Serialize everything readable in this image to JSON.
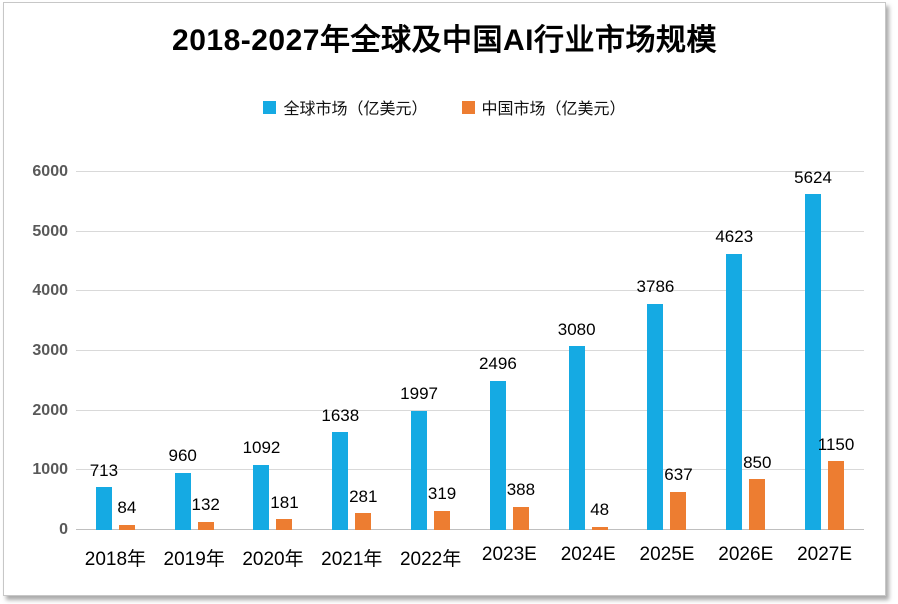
{
  "title": "2018-2027年全球及中国AI行业市场规模",
  "legend": [
    {
      "label": "全球市场（亿美元）",
      "color": "#15AAE3",
      "marker": "square-icon"
    },
    {
      "label": "中国市场（亿美元）",
      "color": "#ED7D31",
      "marker": "square-icon"
    }
  ],
  "chart_data": {
    "type": "bar",
    "title": "2018-2027年全球及中国AI行业市场规模",
    "categories": [
      "2018年",
      "2019年",
      "2020年",
      "2021年",
      "2022年",
      "2023E",
      "2024E",
      "2025E",
      "2026E",
      "2027E"
    ],
    "series": [
      {
        "name": "全球市场（亿美元）",
        "color": "#15AAE3",
        "values": [
          713,
          960,
          1092,
          1638,
          1997,
          2496,
          3080,
          3786,
          4623,
          5624
        ]
      },
      {
        "name": "中国市场（亿美元）",
        "color": "#ED7D31",
        "values": [
          84,
          132,
          181,
          281,
          319,
          388,
          48,
          637,
          850,
          1150
        ]
      }
    ],
    "ylim": [
      0,
      6000
    ],
    "yticks": [
      0,
      1000,
      2000,
      3000,
      4000,
      5000,
      6000
    ],
    "xlabel": "",
    "ylabel": "",
    "grid": true,
    "legend_position": "top",
    "data_labels": true
  },
  "colors": {
    "global_series": "#15AAE3",
    "china_series": "#ED7D31",
    "gridline": "#D9D9D9",
    "axis_line": "#BFBFBF",
    "y_tick_text": "#595959",
    "x_tick_text": "#000000",
    "value_label_text": "#000000",
    "title_text": "#000000",
    "background": "#FFFFFF"
  }
}
